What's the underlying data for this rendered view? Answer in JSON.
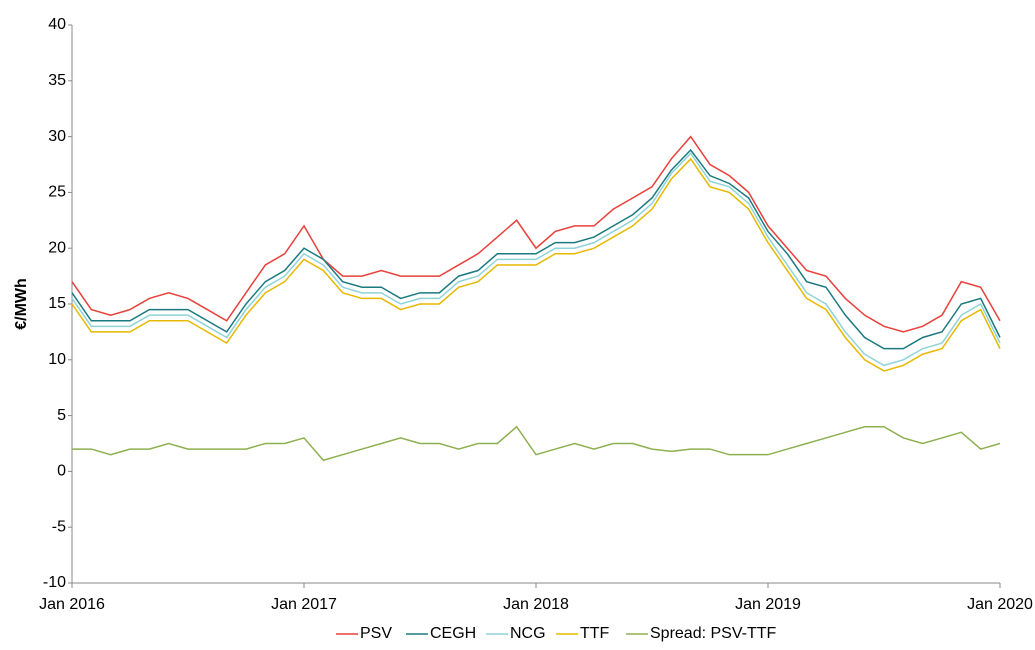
{
  "chart_data": {
    "type": "line",
    "y_label": "€/MWh",
    "x": [
      "2016-01",
      "2016-02",
      "2016-03",
      "2016-04",
      "2016-05",
      "2016-06",
      "2016-07",
      "2016-08",
      "2016-09",
      "2016-10",
      "2016-11",
      "2016-12",
      "2017-01",
      "2017-02",
      "2017-03",
      "2017-04",
      "2017-05",
      "2017-06",
      "2017-07",
      "2017-08",
      "2017-09",
      "2017-10",
      "2017-11",
      "2017-12",
      "2018-01",
      "2018-02",
      "2018-03",
      "2018-04",
      "2018-05",
      "2018-06",
      "2018-07",
      "2018-08",
      "2018-09",
      "2018-10",
      "2018-11",
      "2018-12",
      "2019-01",
      "2019-02",
      "2019-03",
      "2019-04",
      "2019-05",
      "2019-06",
      "2019-07",
      "2019-08",
      "2019-09",
      "2019-10",
      "2019-11",
      "2019-12",
      "2020-01"
    ],
    "xlim": [
      "2016-01",
      "2020-01"
    ],
    "xticks": [
      {
        "value": "2016-01",
        "label": "Jan 2016"
      },
      {
        "value": "2017-01",
        "label": "Jan 2017"
      },
      {
        "value": "2018-01",
        "label": "Jan 2018"
      },
      {
        "value": "2019-01",
        "label": "Jan 2019"
      },
      {
        "value": "2020-01",
        "label": "Jan 2020"
      }
    ],
    "ylim": [
      -10,
      40
    ],
    "yticks": [
      -10,
      -5,
      0,
      5,
      10,
      15,
      20,
      25,
      30,
      35,
      40
    ],
    "grid": false,
    "legend": "bottom",
    "series": [
      {
        "name": "PSV",
        "color": "#e8403a",
        "values": [
          17,
          14.5,
          14,
          14.5,
          15.5,
          16,
          15.5,
          14.5,
          13.5,
          16,
          18.5,
          19.5,
          22,
          19,
          17.5,
          17.5,
          18,
          17.5,
          17.5,
          17.5,
          18.5,
          19.5,
          21,
          22.5,
          20,
          21.5,
          22,
          22,
          23.5,
          24.5,
          25.5,
          28,
          30,
          27.5,
          26.5,
          25,
          22,
          20,
          18,
          17.5,
          15.5,
          14,
          13,
          12.5,
          13,
          14,
          17,
          16.5,
          13.5
        ]
      },
      {
        "name": "CEGH",
        "color": "#1b7a80",
        "values": [
          16,
          13.5,
          13.5,
          13.5,
          14.5,
          14.5,
          14.5,
          13.5,
          12.5,
          15,
          17,
          18,
          20,
          19,
          17,
          16.5,
          16.5,
          15.5,
          16,
          16,
          17.5,
          18,
          19.5,
          19.5,
          19.5,
          20.5,
          20.5,
          21,
          22,
          23,
          24.5,
          27,
          28.8,
          26.5,
          25.8,
          24.5,
          21.5,
          19.5,
          17,
          16.5,
          14,
          12,
          11,
          11,
          12,
          12.5,
          15,
          15.5,
          12
        ]
      },
      {
        "name": "NCG",
        "color": "#8fd3d8",
        "values": [
          15.5,
          13,
          13,
          13,
          14,
          14,
          14,
          13,
          12,
          14.5,
          16.5,
          17.5,
          19.5,
          18.5,
          16.5,
          16,
          16,
          15,
          15.5,
          15.5,
          17,
          17.5,
          19,
          19,
          19,
          20,
          20,
          20.5,
          21.5,
          22.5,
          24,
          26.7,
          28.5,
          26,
          25.5,
          24,
          21,
          18.5,
          16,
          15,
          12.5,
          10.5,
          9.5,
          10,
          11,
          11.5,
          14,
          15,
          11.5
        ]
      },
      {
        "name": "TTF",
        "color": "#e8b800",
        "values": [
          15,
          12.5,
          12.5,
          12.5,
          13.5,
          13.5,
          13.5,
          12.5,
          11.5,
          14,
          16,
          17,
          19,
          18,
          16,
          15.5,
          15.5,
          14.5,
          15,
          15,
          16.5,
          17,
          18.5,
          18.5,
          18.5,
          19.5,
          19.5,
          20,
          21,
          22,
          23.5,
          26.2,
          28,
          25.5,
          25,
          23.5,
          20.5,
          18,
          15.5,
          14.5,
          12,
          10,
          9,
          9.5,
          10.5,
          11,
          13.5,
          14.5,
          11
        ]
      },
      {
        "name": "Spread: PSV-TTF",
        "color": "#8db050",
        "values": [
          2,
          2,
          1.5,
          2,
          2,
          2.5,
          2,
          2,
          2,
          2,
          2.5,
          2.5,
          3,
          1,
          1.5,
          2,
          2.5,
          3,
          2.5,
          2.5,
          2,
          2.5,
          2.5,
          4,
          1.5,
          2,
          2.5,
          2,
          2.5,
          2.5,
          2,
          1.8,
          2,
          2,
          1.5,
          1.5,
          1.5,
          2,
          2.5,
          3,
          3.5,
          4,
          4,
          3,
          2.5,
          3,
          3.5,
          2,
          2.5
        ]
      }
    ]
  }
}
